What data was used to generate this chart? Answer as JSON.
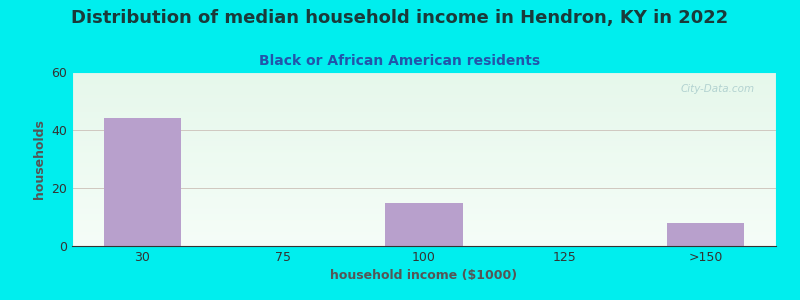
{
  "title": "Distribution of median household income in Hendron, KY in 2022",
  "subtitle": "Black or African American residents",
  "xlabel": "household income ($1000)",
  "ylabel": "households",
  "categories": [
    "30",
    "75",
    "100",
    "125",
    ">150"
  ],
  "values": [
    44,
    0,
    15,
    0,
    8
  ],
  "bar_color": "#b8a0cc",
  "bar_width": 0.55,
  "ylim": [
    0,
    60
  ],
  "yticks": [
    0,
    20,
    40,
    60
  ],
  "background_color": "#00eeee",
  "title_color": "#1a3a3a",
  "subtitle_color": "#2255aa",
  "grid_color": "#d0c8c0",
  "axis_label_color": "#555555",
  "title_fontsize": 13,
  "subtitle_fontsize": 10,
  "axis_label_fontsize": 9,
  "tick_fontsize": 9,
  "watermark": "City-Data.com"
}
